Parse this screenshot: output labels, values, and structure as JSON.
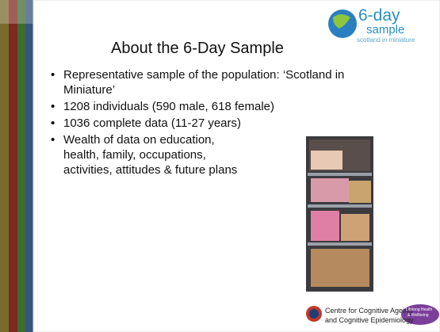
{
  "title": "About the 6-Day Sample",
  "logo": {
    "name": "6-day",
    "sub": "sample",
    "tagline": "scotland in miniature"
  },
  "bullets": [
    [
      "Representative sample of the population: ‘Scotland in",
      "Miniature’"
    ],
    [
      "1208 individuals (590 male, 618 female)"
    ],
    [
      "1036 complete data (11-27 years)"
    ],
    [
      "Wealth of data on education,",
      "health, family, occupations,",
      "activities, attitudes & future plans"
    ]
  ],
  "footer": {
    "centre": [
      "Centre for Cognitive Ageing",
      "and Cognitive Epidemiology"
    ],
    "partner": [
      "Lifelong Health",
      "& Wellbeing"
    ]
  }
}
